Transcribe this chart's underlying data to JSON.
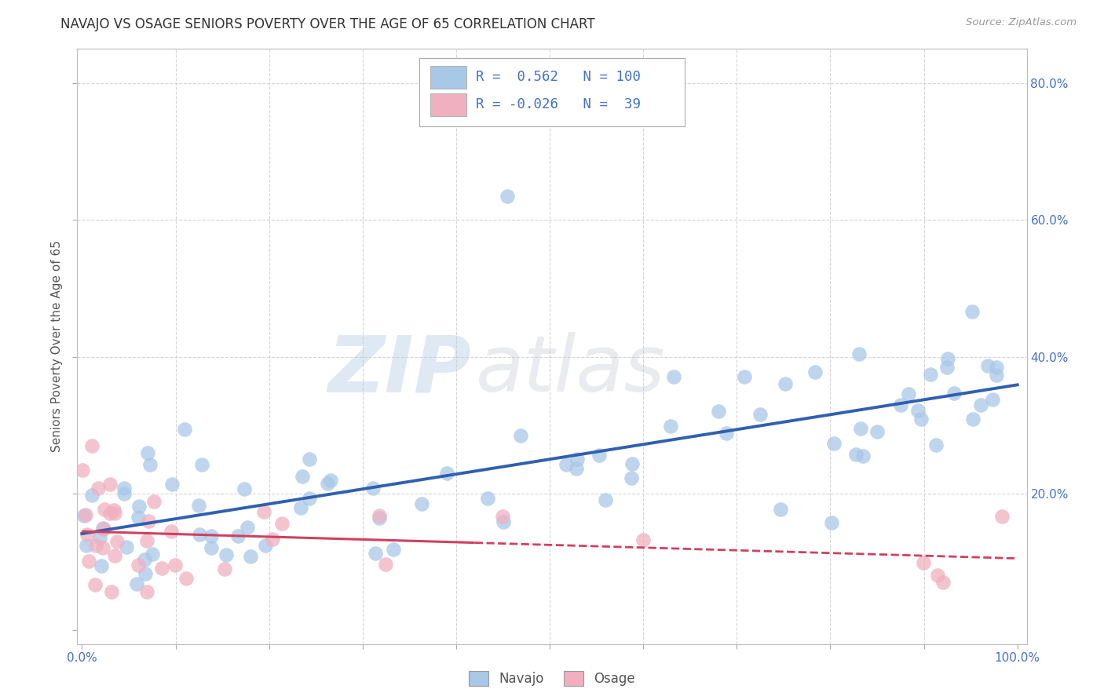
{
  "title": "NAVAJO VS OSAGE SENIORS POVERTY OVER THE AGE OF 65 CORRELATION CHART",
  "source": "Source: ZipAtlas.com",
  "ylabel": "Seniors Poverty Over the Age of 65",
  "xlim": [
    -0.005,
    1.01
  ],
  "ylim": [
    -0.02,
    0.85
  ],
  "navajo_R": 0.562,
  "navajo_N": 100,
  "osage_R": -0.026,
  "osage_N": 39,
  "navajo_color": "#a8c8e8",
  "navajo_line_color": "#3060b0",
  "osage_color": "#f0b0c0",
  "osage_line_color": "#d04060",
  "background_color": "#ffffff",
  "grid_color": "#cccccc",
  "watermark_zip": "ZIP",
  "watermark_atlas": "atlas",
  "title_fontsize": 12,
  "ylabel_fontsize": 11,
  "tick_fontsize": 11,
  "ytick_positions": [
    0.0,
    0.2,
    0.4,
    0.6,
    0.8
  ],
  "ytick_labels": [
    "",
    "20.0%",
    "40.0%",
    "60.0%",
    "80.0%"
  ],
  "xtick_positions": [
    0.0,
    0.1,
    0.2,
    0.3,
    0.4,
    0.5,
    0.6,
    0.7,
    0.8,
    0.9,
    1.0
  ],
  "xtick_labels": [
    "0.0%",
    "",
    "",
    "",
    "",
    "",
    "",
    "",
    "",
    "",
    "100.0%"
  ]
}
